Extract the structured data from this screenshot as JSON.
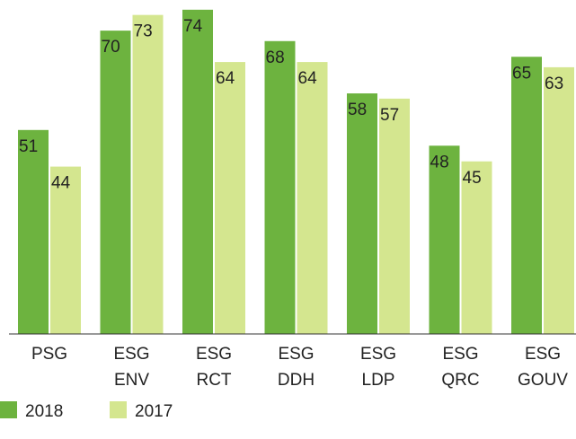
{
  "chart_data": {
    "type": "bar",
    "categories": [
      [
        "PSG"
      ],
      [
        "ESG",
        "ENV"
      ],
      [
        "ESG",
        "RCT"
      ],
      [
        "ESG",
        "DDH"
      ],
      [
        "ESG",
        "LDP"
      ],
      [
        "ESG",
        "QRC"
      ],
      [
        "ESG",
        "GOUV"
      ]
    ],
    "series": [
      {
        "name": "2018",
        "color": "#6db33f",
        "values": [
          51,
          70,
          74,
          68,
          58,
          48,
          65
        ]
      },
      {
        "name": "2017",
        "color": "#d4e68f",
        "values": [
          44,
          73,
          64,
          64,
          57,
          45,
          63
        ]
      }
    ],
    "ylim": [
      12,
      75
    ],
    "legend": "bottom-left"
  }
}
